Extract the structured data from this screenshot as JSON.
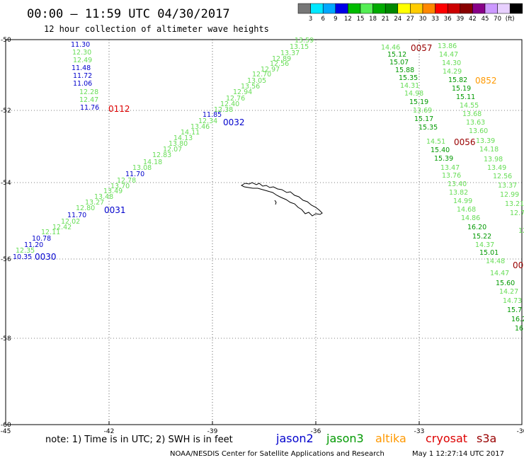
{
  "header": {
    "title": "00:00 – 11:59 UTC 04/30/2017",
    "subtitle": "12 hour collection of altimeter wave heights"
  },
  "legend": {
    "colors": [
      "#777777",
      "#00e8ff",
      "#00a8ff",
      "#0000e8",
      "#00bb00",
      "#55ee55",
      "#00aa00",
      "#008800",
      "#ffff00",
      "#ffcc00",
      "#ff8800",
      "#ff0000",
      "#cc0000",
      "#880000",
      "#880088",
      "#cc99ff",
      "#e8d0ff",
      "#000000"
    ],
    "labels": [
      "3",
      "6",
      "9",
      "12",
      "15",
      "18",
      "21",
      "24",
      "27",
      "30",
      "33",
      "36",
      "39",
      "42",
      "45",
      "70",
      "(ft)"
    ]
  },
  "axes": {
    "x_ticks": [
      "-45",
      "-42",
      "-39",
      "-36",
      "-33",
      "-30"
    ],
    "y_ticks": [
      "-50",
      "-52",
      "-54",
      "-56",
      "-58",
      "-60"
    ]
  },
  "colors": {
    "jason2": "#0000cc",
    "jason3": "#009900",
    "altika": "#ff9900",
    "cryosat": "#dd0000",
    "s3a": "#990000",
    "light_green": "#66dd55",
    "med_green": "#009900"
  },
  "tracks": [
    {
      "name": "track-jason2-west",
      "points": [
        {
          "v": "11.30",
          "c": "#0000cc"
        },
        {
          "v": "12.30",
          "c": "#66dd55"
        },
        {
          "v": "12.49",
          "c": "#66dd55"
        },
        {
          "v": "11.48",
          "c": "#0000cc"
        },
        {
          "v": "11.72",
          "c": "#0000cc"
        },
        {
          "v": "11.06",
          "c": "#0000cc"
        },
        {
          "v": "12.28",
          "c": "#66dd55"
        },
        {
          "v": "12.47",
          "c": "#66dd55"
        },
        {
          "v": "11.76",
          "c": "#0000cc"
        }
      ]
    },
    {
      "name": "track-diagonal-upper",
      "points": [
        {
          "v": "13.59",
          "c": "#66dd55"
        },
        {
          "v": "13.15",
          "c": "#66dd55"
        },
        {
          "v": "13.37",
          "c": "#66dd55"
        },
        {
          "v": "12.89",
          "c": "#66dd55"
        },
        {
          "v": "12.56",
          "c": "#66dd55"
        },
        {
          "v": "12.97",
          "c": "#66dd55"
        },
        {
          "v": "12.70",
          "c": "#66dd55"
        },
        {
          "v": "13.05",
          "c": "#66dd55"
        },
        {
          "v": "13.56",
          "c": "#66dd55"
        },
        {
          "v": "12.94",
          "c": "#66dd55"
        },
        {
          "v": "12.76",
          "c": "#66dd55"
        },
        {
          "v": "12.40",
          "c": "#66dd55"
        },
        {
          "v": "12.38",
          "c": "#66dd55"
        },
        {
          "v": "11.85",
          "c": "#0000cc"
        },
        {
          "v": "12.34",
          "c": "#66dd55"
        }
      ]
    },
    {
      "name": "track-diagonal-middle",
      "points": [
        {
          "v": "13.46",
          "c": "#66dd55"
        },
        {
          "v": "14.11",
          "c": "#66dd55"
        },
        {
          "v": "14.13",
          "c": "#66dd55"
        },
        {
          "v": "13.80",
          "c": "#66dd55"
        },
        {
          "v": "12.07",
          "c": "#66dd55"
        },
        {
          "v": "12.83",
          "c": "#66dd55"
        },
        {
          "v": "14.18",
          "c": "#66dd55"
        },
        {
          "v": "13.08",
          "c": "#66dd55"
        },
        {
          "v": "11.70",
          "c": "#0000cc"
        },
        {
          "v": "12.78",
          "c": "#66dd55"
        },
        {
          "v": "13.70",
          "c": "#66dd55"
        },
        {
          "v": "13.49",
          "c": "#66dd55"
        },
        {
          "v": "13.48",
          "c": "#66dd55"
        },
        {
          "v": "13.27",
          "c": "#66dd55"
        },
        {
          "v": "12.80",
          "c": "#66dd55"
        }
      ]
    },
    {
      "name": "track-diagonal-lower",
      "points": [
        {
          "v": "11.70",
          "c": "#0000cc"
        },
        {
          "v": "12.02",
          "c": "#66dd55"
        },
        {
          "v": "12.42",
          "c": "#66dd55"
        },
        {
          "v": "12.11",
          "c": "#66dd55"
        },
        {
          "v": "10.78",
          "c": "#0000cc"
        },
        {
          "v": "11.20",
          "c": "#0000cc"
        },
        {
          "v": "12.35",
          "c": "#66dd55"
        },
        {
          "v": "10.35",
          "c": "#0000cc"
        }
      ]
    },
    {
      "name": "track-jason3-east-a",
      "points": [
        {
          "v": "14.46",
          "c": "#66dd55"
        },
        {
          "v": "15.12",
          "c": "#009900"
        },
        {
          "v": "15.07",
          "c": "#009900"
        },
        {
          "v": "15.88",
          "c": "#009900"
        },
        {
          "v": "15.35",
          "c": "#009900"
        },
        {
          "v": "14.31",
          "c": "#66dd55"
        },
        {
          "v": "14.98",
          "c": "#66dd55"
        },
        {
          "v": "15.19",
          "c": "#009900"
        },
        {
          "v": "13.69",
          "c": "#66dd55"
        },
        {
          "v": "15.17",
          "c": "#009900"
        },
        {
          "v": "15.35",
          "c": "#009900"
        }
      ]
    },
    {
      "name": "track-jason3-east-b",
      "points": [
        {
          "v": "13.86",
          "c": "#66dd55"
        },
        {
          "v": "14.47",
          "c": "#66dd55"
        },
        {
          "v": "14.30",
          "c": "#66dd55"
        },
        {
          "v": "14.29",
          "c": "#66dd55"
        },
        {
          "v": "15.82",
          "c": "#009900"
        },
        {
          "v": "15.19",
          "c": "#009900"
        },
        {
          "v": "15.11",
          "c": "#009900"
        },
        {
          "v": "14.55",
          "c": "#66dd55"
        },
        {
          "v": "13.68",
          "c": "#66dd55"
        },
        {
          "v": "13.63",
          "c": "#66dd55"
        },
        {
          "v": "13.60",
          "c": "#66dd55"
        },
        {
          "v": "13.39",
          "c": "#66dd55"
        },
        {
          "v": "14.18",
          "c": "#66dd55"
        },
        {
          "v": "13.98",
          "c": "#66dd55"
        },
        {
          "v": "13.49",
          "c": "#66dd55"
        },
        {
          "v": "12.56",
          "c": "#66dd55"
        },
        {
          "v": "13.37",
          "c": "#66dd55"
        },
        {
          "v": "12.99",
          "c": "#66dd55"
        },
        {
          "v": "13.21",
          "c": "#66dd55"
        },
        {
          "v": "12.7",
          "c": "#66dd55"
        },
        {
          "v": "12.1",
          "c": "#66dd55"
        }
      ]
    },
    {
      "name": "track-jason3-east-c",
      "points": [
        {
          "v": "14.51",
          "c": "#66dd55"
        },
        {
          "v": "15.40",
          "c": "#009900"
        },
        {
          "v": "15.39",
          "c": "#009900"
        },
        {
          "v": "13.47",
          "c": "#66dd55"
        },
        {
          "v": "13.76",
          "c": "#66dd55"
        },
        {
          "v": "13.40",
          "c": "#66dd55"
        },
        {
          "v": "13.82",
          "c": "#66dd55"
        },
        {
          "v": "14.99",
          "c": "#66dd55"
        },
        {
          "v": "14.68",
          "c": "#66dd55"
        },
        {
          "v": "14.86",
          "c": "#66dd55"
        },
        {
          "v": "16.20",
          "c": "#009900"
        },
        {
          "v": "15.22",
          "c": "#009900"
        },
        {
          "v": "14.37",
          "c": "#66dd55"
        },
        {
          "v": "15.01",
          "c": "#009900"
        },
        {
          "v": "14.48",
          "c": "#66dd55"
        },
        {
          "v": "14.47",
          "c": "#66dd55"
        },
        {
          "v": "15.60",
          "c": "#009900"
        },
        {
          "v": "14.27",
          "c": "#66dd55"
        },
        {
          "v": "14.73",
          "c": "#66dd55"
        },
        {
          "v": "15.7",
          "c": "#009900"
        },
        {
          "v": "16.2",
          "c": "#009900"
        },
        {
          "v": "16",
          "c": "#009900"
        }
      ]
    }
  ],
  "time_labels": [
    {
      "name": "time-label-0112",
      "text": "0112",
      "c": "#dd0000"
    },
    {
      "name": "time-label-0032",
      "text": "0032",
      "c": "#0000cc"
    },
    {
      "name": "time-label-0031",
      "text": "0031",
      "c": "#0000cc"
    },
    {
      "name": "time-label-0030",
      "text": "0030",
      "c": "#0000cc"
    },
    {
      "name": "time-label-0057",
      "text": "0057",
      "c": "#990000"
    },
    {
      "name": "time-label-0852",
      "text": "0852",
      "c": "#ff9900"
    },
    {
      "name": "time-label-0056",
      "text": "0056",
      "c": "#990000"
    },
    {
      "name": "time-label-00",
      "text": "00",
      "c": "#990000"
    }
  ],
  "footer": {
    "note": "note: 1) Time is in UTC; 2) SWH is in feet",
    "satellites": [
      {
        "name": "jason2",
        "c": "#0000cc"
      },
      {
        "name": "jason3",
        "c": "#009900"
      },
      {
        "name": "altika",
        "c": "#ff9900"
      },
      {
        "name": "cryosat",
        "c": "#dd0000"
      },
      {
        "name": "s3a",
        "c": "#990000"
      }
    ],
    "credit": "NOAA/NESDIS Center for Satellite Applications and Research",
    "timestamp": "May  1 12:27:14 UTC 2017"
  }
}
